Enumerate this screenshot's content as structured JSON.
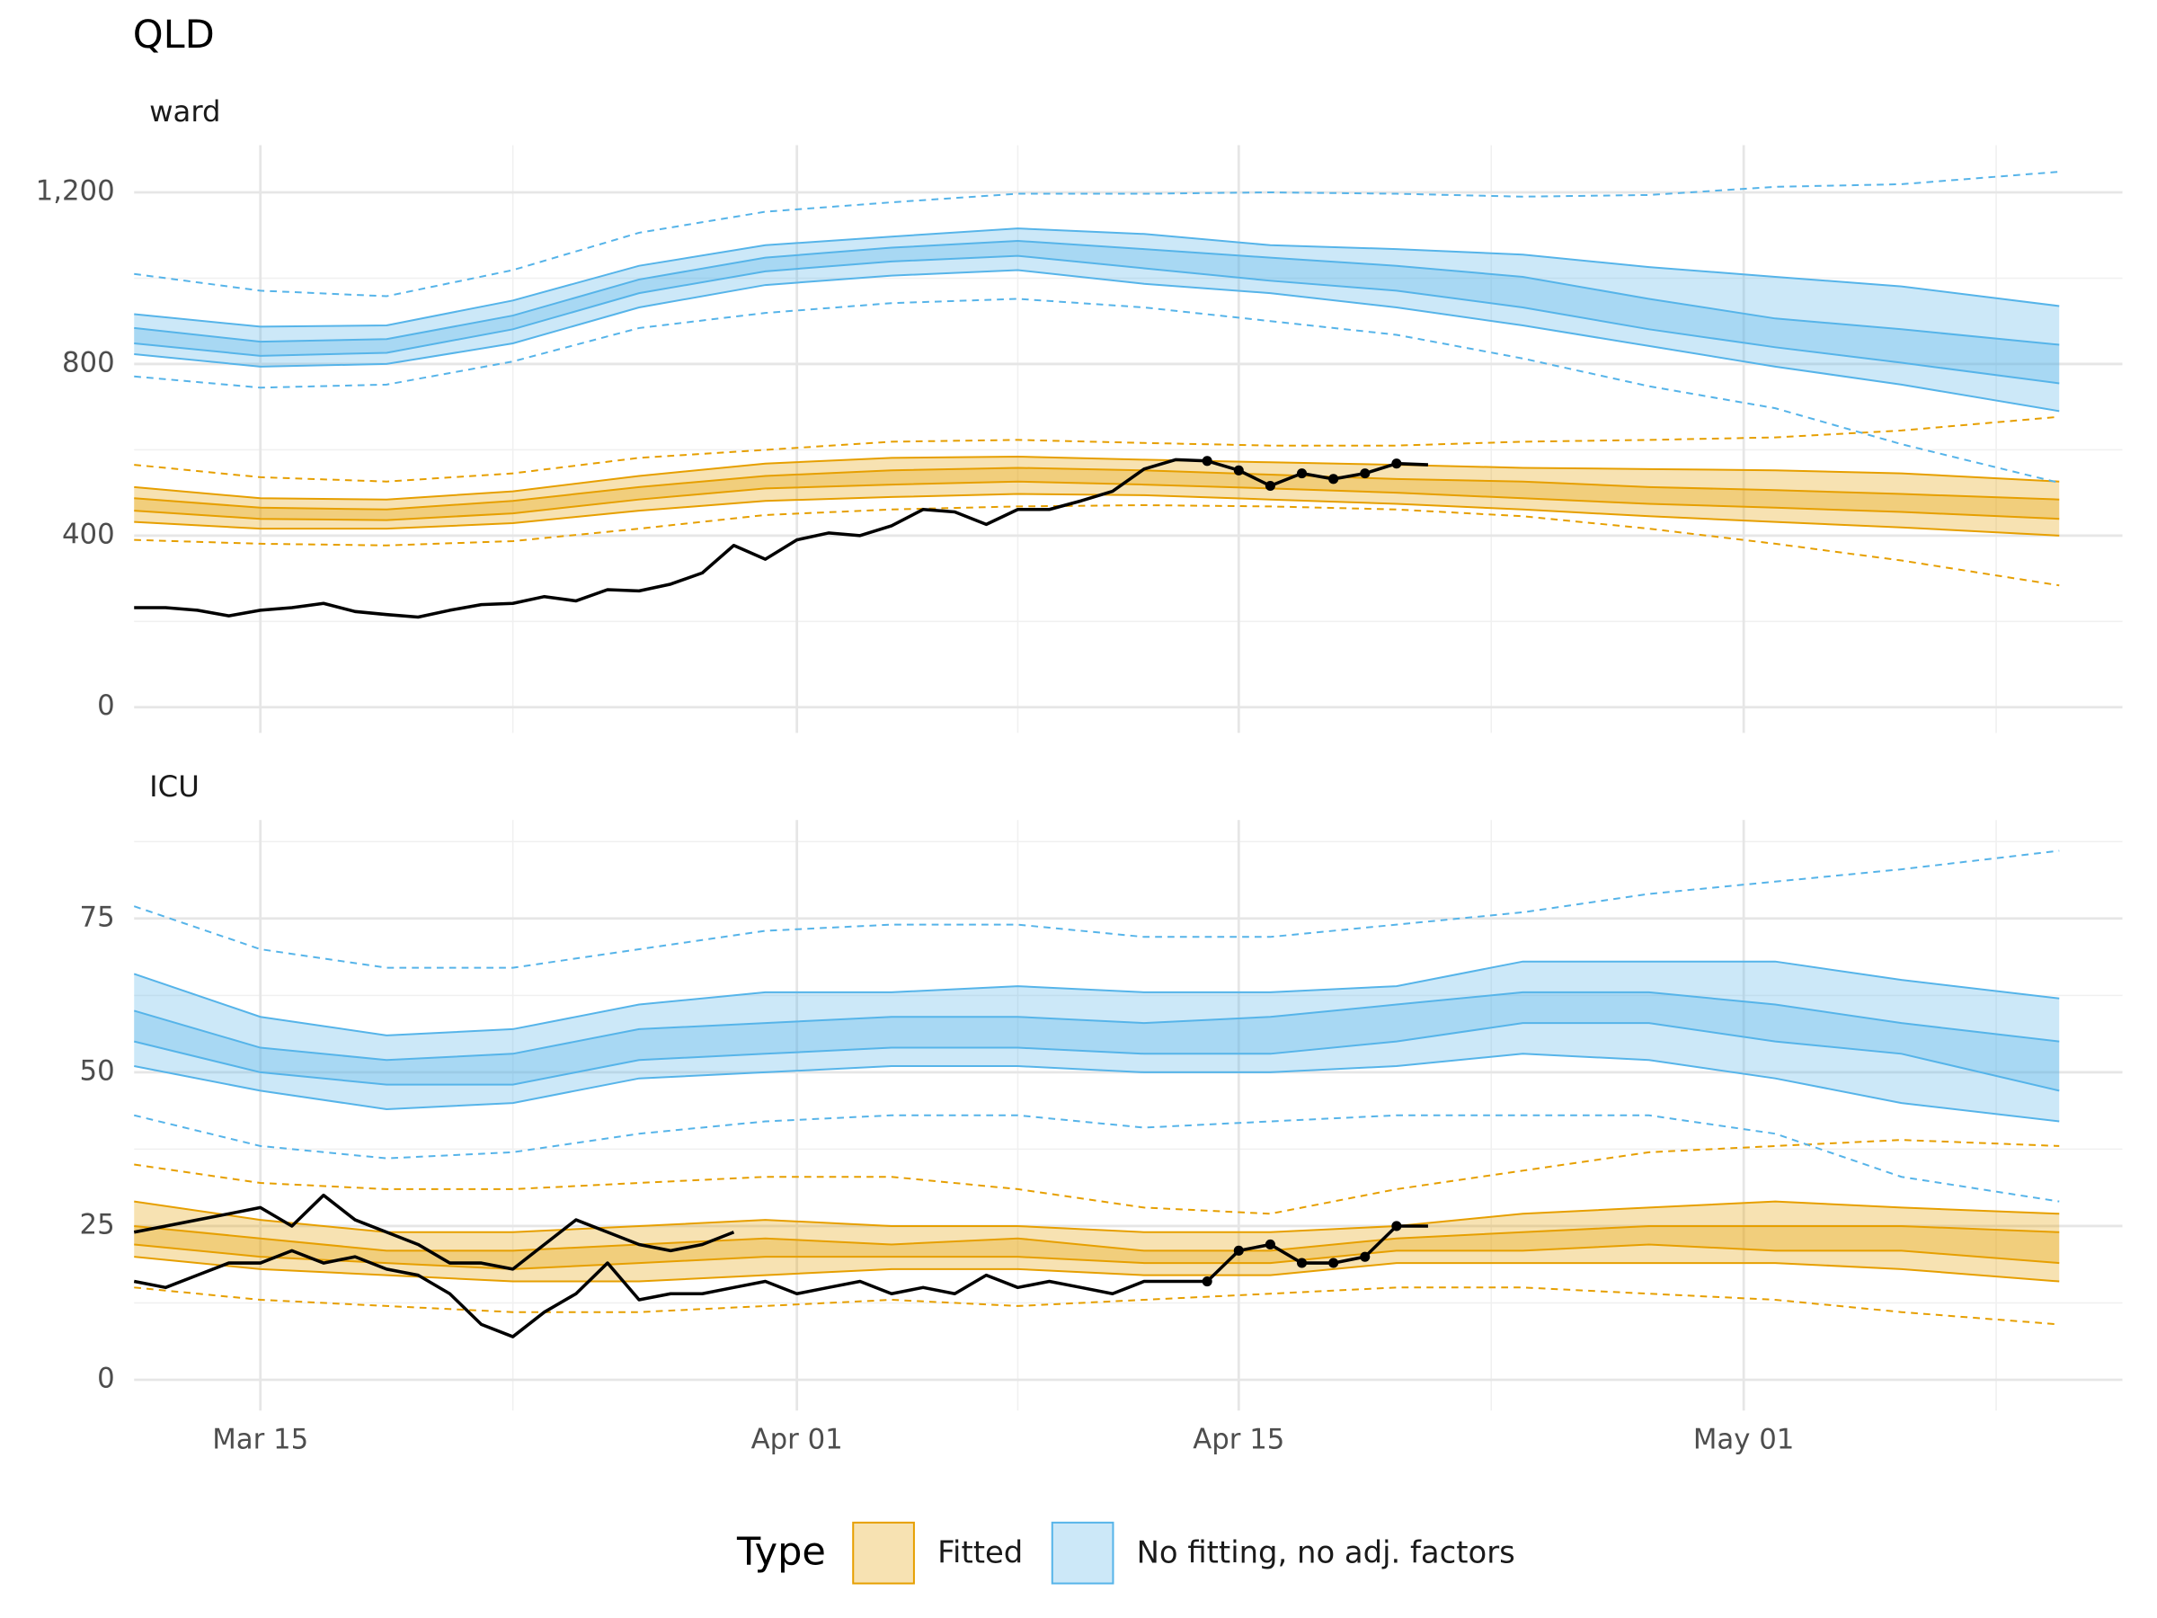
{
  "title": "QLD",
  "legend_title": "Type",
  "chart_data": [
    {
      "type": "band",
      "subtitle": "ward",
      "x": [
        "Mar 11",
        "Mar 15",
        "Mar 19",
        "Mar 23",
        "Mar 27",
        "Mar 31",
        "Apr 04",
        "Apr 08",
        "Apr 12",
        "Apr 16",
        "Apr 20",
        "Apr 24",
        "Apr 28",
        "May 02",
        "May 06",
        "May 11"
      ],
      "xlim": [
        "Mar 11",
        "May 13"
      ],
      "xticks": [
        "Mar 15",
        "Apr 01",
        "Apr 15",
        "May 01"
      ],
      "x_minor_grid": [
        "Mar 23",
        "Apr 08",
        "Apr 23",
        "May 09"
      ],
      "x_tick_labels": false,
      "ylim": [
        -60,
        1310
      ],
      "yticks": [
        0,
        400,
        800,
        {
          "value": 1200,
          "label": "1,200"
        }
      ],
      "y_minor_grid": [
        200,
        600,
        1000
      ],
      "grid": true,
      "bands": [
        {
          "name": "Fitted",
          "color": "#e69f00",
          "upper_dashed": [
            565,
            536,
            526,
            545,
            581,
            600,
            619,
            623,
            616,
            610,
            610,
            619,
            623,
            629,
            645,
            677
          ],
          "outer_upper": [
            513,
            487,
            484,
            503,
            539,
            568,
            581,
            584,
            577,
            571,
            565,
            558,
            555,
            552,
            545,
            526
          ],
          "inner_upper": [
            487,
            465,
            461,
            481,
            513,
            539,
            552,
            558,
            552,
            542,
            532,
            526,
            513,
            506,
            497,
            484
          ],
          "inner_lower": [
            458,
            439,
            436,
            452,
            484,
            510,
            519,
            526,
            519,
            510,
            500,
            487,
            474,
            465,
            455,
            439
          ],
          "outer_lower": [
            432,
            416,
            416,
            429,
            458,
            481,
            490,
            497,
            494,
            484,
            474,
            461,
            445,
            432,
            419,
            400
          ],
          "lower_dashed": [
            390,
            381,
            377,
            387,
            416,
            448,
            461,
            468,
            471,
            468,
            461,
            445,
            416,
            381,
            342,
            284
          ]
        },
        {
          "name": "No fitting, no adj. factors",
          "color": "#56b4e9",
          "upper_dashed": [
            1010,
            971,
            958,
            1019,
            1106,
            1155,
            1177,
            1197,
            1197,
            1200,
            1197,
            1190,
            1194,
            1213,
            1219,
            1248
          ],
          "outer_upper": [
            916,
            887,
            890,
            948,
            1029,
            1077,
            1097,
            1116,
            1103,
            1077,
            1068,
            1055,
            1026,
            1003,
            981,
            935
          ],
          "inner_upper": [
            884,
            852,
            858,
            913,
            997,
            1048,
            1071,
            1087,
            1068,
            1048,
            1029,
            1003,
            952,
            906,
            881,
            845
          ],
          "inner_lower": [
            848,
            819,
            826,
            881,
            965,
            1016,
            1039,
            1052,
            1023,
            994,
            971,
            932,
            881,
            839,
            803,
            755
          ],
          "outer_lower": [
            823,
            794,
            800,
            848,
            932,
            984,
            1006,
            1019,
            987,
            965,
            932,
            890,
            842,
            794,
            752,
            690
          ],
          "lower_dashed": [
            771,
            745,
            752,
            806,
            884,
            919,
            942,
            952,
            932,
            900,
            868,
            813,
            748,
            697,
            613,
            523
          ]
        }
      ],
      "series": [
        {
          "color": "#000000",
          "x": [
            "Mar 11",
            "Mar 12",
            "Mar 13",
            "Mar 14",
            "Mar 15",
            "Mar 16",
            "Mar 17",
            "Mar 18",
            "Mar 19",
            "Mar 20",
            "Mar 21",
            "Mar 22",
            "Mar 23",
            "Mar 24",
            "Mar 25",
            "Mar 26",
            "Mar 27",
            "Mar 28",
            "Mar 29",
            "Mar 30",
            "Mar 31",
            "Apr 01",
            "Apr 02",
            "Apr 03",
            "Apr 04",
            "Apr 05",
            "Apr 06",
            "Apr 07",
            "Apr 08",
            "Apr 09",
            "Apr 10",
            "Apr 11",
            "Apr 12",
            "Apr 13",
            "Apr 14",
            "Apr 15",
            "Apr 16",
            "Apr 17",
            "Apr 18",
            "Apr 19",
            "Apr 20",
            "Apr 21"
          ],
          "values": [
            232,
            232,
            226,
            213,
            226,
            232,
            242,
            223,
            216,
            210,
            226,
            239,
            242,
            258,
            248,
            274,
            271,
            287,
            313,
            377,
            345,
            390,
            406,
            400,
            423,
            461,
            455,
            426,
            461,
            461,
            481,
            503,
            555,
            577,
            574,
            552,
            516,
            545,
            532,
            545,
            568,
            565
          ],
          "marker_range": [
            "Apr 14",
            "Apr 20"
          ]
        }
      ]
    },
    {
      "type": "band",
      "subtitle": "ICU",
      "x": [
        "Mar 11",
        "Mar 15",
        "Mar 19",
        "Mar 23",
        "Mar 27",
        "Mar 31",
        "Apr 04",
        "Apr 08",
        "Apr 12",
        "Apr 16",
        "Apr 20",
        "Apr 24",
        "Apr 28",
        "May 02",
        "May 06",
        "May 11"
      ],
      "xlim": [
        "Mar 11",
        "May 13"
      ],
      "xticks": [
        "Mar 15",
        "Apr 01",
        "Apr 15",
        "May 01"
      ],
      "x_minor_grid": [
        "Mar 23",
        "Apr 08",
        "Apr 23",
        "May 09"
      ],
      "x_tick_labels": true,
      "ylim": [
        -5,
        91
      ],
      "yticks": [
        0,
        25,
        50,
        75
      ],
      "y_minor_grid": [
        12.5,
        37.5,
        62.5,
        87.5
      ],
      "grid": true,
      "bands": [
        {
          "color": "#e69f00",
          "upper_dashed": [
            35,
            32,
            31,
            31,
            32,
            33,
            33,
            31,
            28,
            27,
            31,
            34,
            37,
            38,
            39,
            38
          ],
          "outer_upper": [
            29,
            26,
            24,
            24,
            25,
            26,
            25,
            25,
            24,
            24,
            25,
            27,
            28,
            29,
            28,
            27
          ],
          "inner_upper": [
            25,
            23,
            21,
            21,
            22,
            23,
            22,
            23,
            21,
            21,
            23,
            24,
            25,
            25,
            25,
            24
          ],
          "inner_lower": [
            22,
            20,
            19,
            18,
            19,
            20,
            20,
            20,
            19,
            19,
            21,
            21,
            22,
            21,
            21,
            19
          ],
          "outer_lower": [
            20,
            18,
            17,
            16,
            16,
            17,
            18,
            18,
            17,
            17,
            19,
            19,
            19,
            19,
            18,
            16
          ],
          "lower_dashed": [
            15,
            13,
            12,
            11,
            11,
            12,
            13,
            12,
            13,
            14,
            15,
            15,
            14,
            13,
            11,
            9
          ]
        },
        {
          "color": "#56b4e9",
          "upper_dashed": [
            77,
            70,
            67,
            67,
            70,
            73,
            74,
            74,
            72,
            72,
            74,
            76,
            79,
            81,
            83,
            86
          ],
          "outer_upper": [
            66,
            59,
            56,
            57,
            61,
            63,
            63,
            64,
            63,
            63,
            64,
            68,
            68,
            68,
            65,
            62
          ],
          "inner_upper": [
            60,
            54,
            52,
            53,
            57,
            58,
            59,
            59,
            58,
            59,
            61,
            63,
            63,
            61,
            58,
            55
          ],
          "inner_lower": [
            55,
            50,
            48,
            48,
            52,
            53,
            54,
            54,
            53,
            53,
            55,
            58,
            58,
            55,
            53,
            47
          ],
          "outer_lower": [
            51,
            47,
            44,
            45,
            49,
            50,
            51,
            51,
            50,
            50,
            51,
            53,
            52,
            49,
            45,
            42
          ],
          "lower_dashed": [
            43,
            38,
            36,
            37,
            40,
            42,
            43,
            43,
            41,
            42,
            43,
            43,
            43,
            40,
            33,
            29
          ]
        }
      ],
      "series": [
        {
          "color": "#000000",
          "x": [
            "Mar 11",
            "Mar 12",
            "Mar 13",
            "Mar 14",
            "Mar 15",
            "Mar 16",
            "Mar 17",
            "Mar 18",
            "Mar 19",
            "Mar 20",
            "Mar 21",
            "Mar 22",
            "Mar 23",
            "Mar 24",
            "Mar 25",
            "Mar 26",
            "Mar 27",
            "Mar 28",
            "Mar 29",
            "Mar 30",
            "Mar 31",
            "Apr 01",
            "Apr 02",
            "Apr 03",
            "Apr 04",
            "Apr 05",
            "Apr 06",
            "Apr 07",
            "Apr 08",
            "Apr 09",
            "Apr 10",
            "Apr 11",
            "Apr 12",
            "Apr 13",
            "Apr 14",
            "Apr 15",
            "Apr 16",
            "Apr 17",
            "Apr 18",
            "Apr 19",
            "Apr 20",
            "Apr 21"
          ],
          "values": [
            16,
            15,
            17,
            19,
            19,
            21,
            19,
            20,
            18,
            17,
            14,
            9,
            7,
            11,
            14,
            19,
            13,
            14,
            14,
            15,
            16,
            14,
            15,
            16,
            14,
            15,
            14,
            17,
            15,
            16,
            15,
            14,
            16,
            16,
            16,
            21,
            22,
            19,
            19,
            20,
            25,
            25
          ],
          "marker_range": [
            "Apr 14",
            "Apr 20"
          ]
        },
        {
          "color": "#000000",
          "x": [
            "Mar 11",
            "Mar 12",
            "Mar 13",
            "Mar 14",
            "Mar 15",
            "Mar 16",
            "Mar 17",
            "Mar 18",
            "Mar 19",
            "Mar 20",
            "Mar 21",
            "Mar 22",
            "Mar 23",
            "Mar 24",
            "Mar 25",
            "Mar 26",
            "Mar 27",
            "Mar 28",
            "Mar 29",
            "Mar 30"
          ],
          "values": [
            24,
            25,
            26,
            27,
            28,
            25,
            30,
            26,
            24,
            22,
            19,
            19,
            18,
            22,
            26,
            24,
            22,
            21,
            22,
            24
          ]
        }
      ]
    }
  ]
}
